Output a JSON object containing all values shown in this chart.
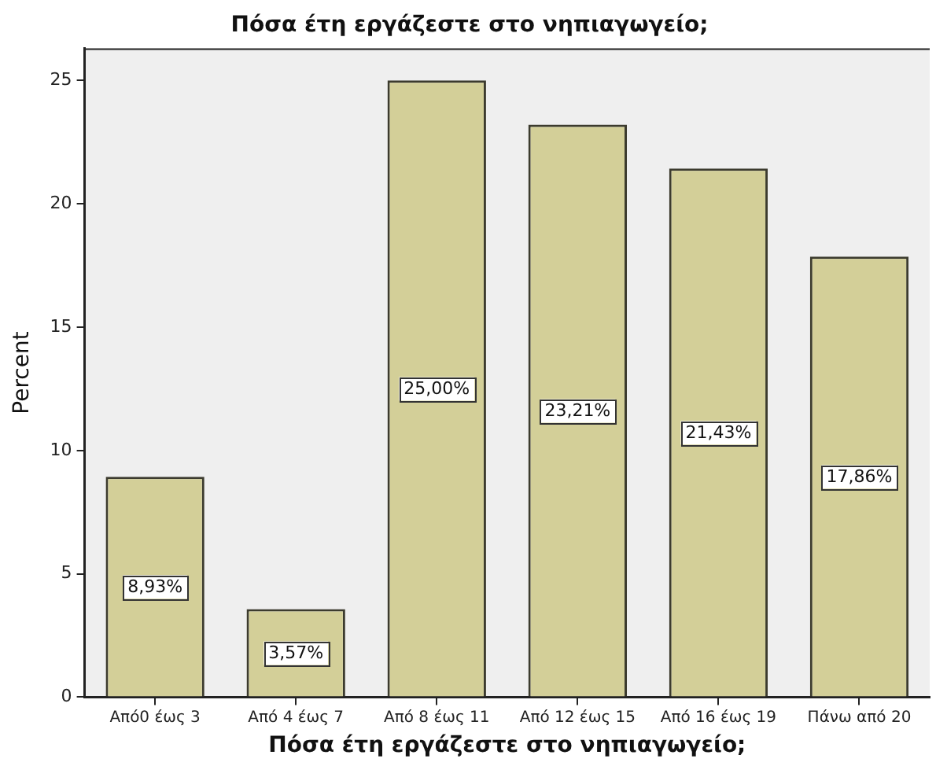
{
  "chart_data": {
    "type": "bar",
    "title": "Πόσα έτη εργάζεστε στο νηπιαγωγείο;",
    "xlabel": "Πόσα έτη εργάζεστε στο νηπιαγωγείο;",
    "ylabel": "Percent",
    "categories": [
      "Από0 έως 3",
      "Από 4 έως 7",
      "Από 8 έως 11",
      "Από 12 έως 15",
      "Από 16 έως 19",
      "Πάνω από 20"
    ],
    "values": [
      8.93,
      3.57,
      25.0,
      23.21,
      21.43,
      17.86
    ],
    "value_labels": [
      "8,93%",
      "3,57%",
      "25,00%",
      "23,21%",
      "21,43%",
      "17,86%"
    ],
    "color": "#d3cf98",
    "ylim": [
      0,
      26.3
    ],
    "yticks": [
      0,
      5,
      10,
      15,
      20,
      25
    ]
  }
}
